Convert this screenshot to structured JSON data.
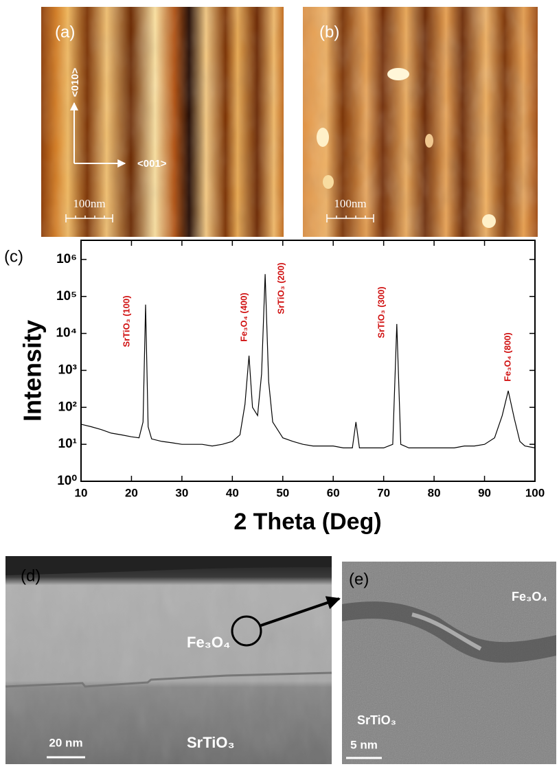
{
  "panels": {
    "a": {
      "label": "(a)",
      "axis_vertical": "<010>",
      "axis_horizontal": "<001>",
      "scale_bar": "100nm"
    },
    "b": {
      "label": "(b)",
      "scale_bar": "100nm"
    },
    "d": {
      "label": "(d)",
      "film": "Fe₃O₄",
      "substrate": "SrTiO₃",
      "scale_bar": "20 nm"
    },
    "e": {
      "label": "(e)",
      "film": "Fe₃O₄",
      "substrate": "SrTiO₃",
      "scale_bar": "5 nm"
    }
  },
  "chart_data": {
    "type": "line",
    "panel_label": "(c)",
    "x_label": "2 Theta (Deg)",
    "y_label": "Intensity",
    "log_y": true,
    "color": "#000000",
    "xlim": [
      10,
      100
    ],
    "xticks": [
      10,
      20,
      30,
      40,
      50,
      60,
      70,
      80,
      90,
      100
    ],
    "ylim": [
      1,
      3300000
    ],
    "yticks": [
      {
        "value": 1,
        "label": "10⁰"
      },
      {
        "value": 10,
        "label": "10¹"
      },
      {
        "value": 100,
        "label": "10²"
      },
      {
        "value": 1000,
        "label": "10³"
      },
      {
        "value": 10000,
        "label": "10⁴"
      },
      {
        "value": 100000,
        "label": "10⁵"
      },
      {
        "value": 1000000,
        "label": "10⁶"
      }
    ],
    "x": [
      10,
      12,
      14,
      16,
      18,
      20,
      21.5,
      22.3,
      22.8,
      23.3,
      24,
      26,
      28,
      30,
      32,
      34,
      36,
      38,
      40,
      41.5,
      42.5,
      43.3,
      44,
      45,
      45.8,
      46.5,
      47.2,
      48,
      50,
      52,
      54,
      56,
      58,
      60,
      62,
      63.8,
      64.5,
      65.2,
      66,
      68,
      70,
      71.8,
      72.6,
      73.4,
      75,
      78,
      80,
      82,
      84,
      86,
      88,
      90,
      92,
      93.5,
      94.7,
      95.9,
      97,
      98,
      100
    ],
    "values": [
      35,
      30,
      25,
      20,
      18,
      16,
      15,
      40,
      60000,
      30,
      14,
      12,
      11,
      10,
      10,
      10,
      9,
      10,
      12,
      18,
      120,
      2500,
      100,
      60,
      800,
      400000,
      500,
      40,
      15,
      12,
      10,
      9,
      9,
      9,
      8,
      8,
      40,
      8,
      8,
      8,
      8,
      10,
      18000,
      10,
      8,
      8,
      8,
      8,
      8,
      9,
      9,
      10,
      15,
      60,
      280,
      50,
      12,
      9,
      8
    ],
    "annotations": [
      "SrTiO₃ (100)",
      "Fe₃O₄ (400)",
      "SrTiO₃ (200)",
      "SrTiO₃ (300)",
      "Fe₃O₄ (800)"
    ]
  }
}
